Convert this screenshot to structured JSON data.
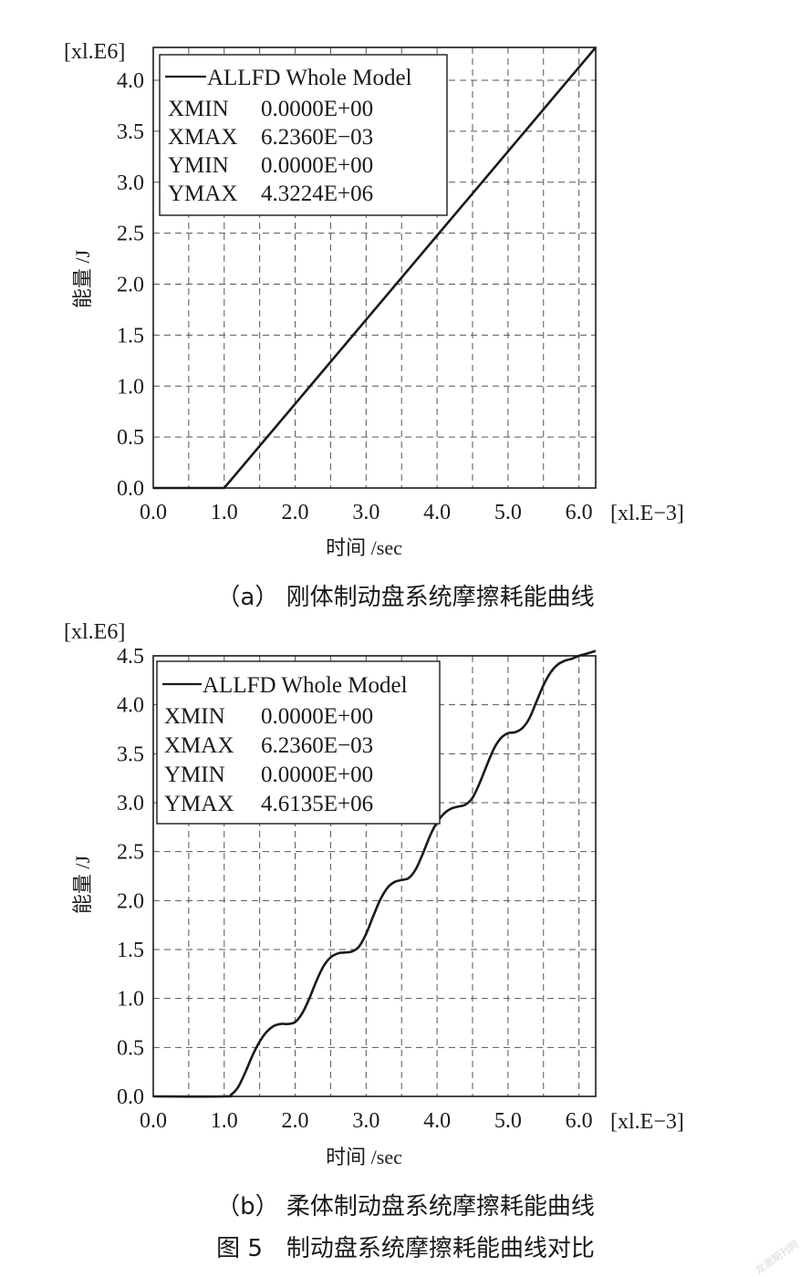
{
  "chart_data": [
    {
      "type": "line",
      "panel": "a",
      "caption": "（a） 刚体制动盘系统摩擦耗能曲线",
      "xlabel": "时间 /sec",
      "ylabel": "能量 /J",
      "x_multiplier": "[xl.E−3]",
      "y_multiplier": "[xl.E6]",
      "xlim": [
        0.0,
        6.236
      ],
      "ylim": [
        0.0,
        4.3224
      ],
      "xticks": [
        0.0,
        1.0,
        2.0,
        3.0,
        4.0,
        5.0,
        6.0
      ],
      "xtick_labels": [
        "0.0",
        "1.0",
        "2.0",
        "3.0",
        "4.0",
        "5.0",
        "6.0"
      ],
      "yticks": [
        0.0,
        0.5,
        1.0,
        1.5,
        2.0,
        2.5,
        3.0,
        3.5,
        4.0
      ],
      "ytick_labels": [
        "0.0",
        "0.5",
        "1.0",
        "1.5",
        "2.0",
        "2.5",
        "3.0",
        "3.5",
        "4.0"
      ],
      "grid_x": [
        0.5,
        1.0,
        1.5,
        2.0,
        2.5,
        3.0,
        3.5,
        4.0,
        4.5,
        5.0,
        5.5,
        6.0
      ],
      "grid_y": [
        0.5,
        1.0,
        1.5,
        2.0,
        2.5,
        3.0,
        3.5,
        4.0
      ],
      "grid": "dashed",
      "legend_position": "top-left",
      "legend": {
        "series": "ALLFD Whole Model",
        "rows": [
          {
            "key": "XMIN",
            "value": "0.0000E+00"
          },
          {
            "key": "XMAX",
            "value": "6.2360E−03"
          },
          {
            "key": "YMIN",
            "value": "0.0000E+00"
          },
          {
            "key": "YMAX",
            "value": "4.3224E+06"
          }
        ]
      },
      "series": [
        {
          "name": "ALLFD Whole Model",
          "color": "#1a1a1a",
          "x": [
            0.0,
            1.0,
            6.236
          ],
          "y": [
            0.0,
            0.0,
            4.3224
          ]
        }
      ]
    },
    {
      "type": "line",
      "panel": "b",
      "caption": "（b） 柔体制动盘系统摩擦耗能曲线",
      "xlabel": "时间 /sec",
      "ylabel": "能量 /J",
      "x_multiplier": "[xl.E−3]",
      "y_multiplier": "[xl.E6]",
      "xlim": [
        0.0,
        6.236
      ],
      "ylim": [
        0.0,
        4.5
      ],
      "xticks": [
        0.0,
        1.0,
        2.0,
        3.0,
        4.0,
        5.0,
        6.0
      ],
      "xtick_labels": [
        "0.0",
        "1.0",
        "2.0",
        "3.0",
        "4.0",
        "5.0",
        "6.0"
      ],
      "yticks": [
        0.0,
        0.5,
        1.0,
        1.5,
        2.0,
        2.5,
        3.0,
        3.5,
        4.0,
        4.5
      ],
      "ytick_labels": [
        "0.0",
        "0.5",
        "1.0",
        "1.5",
        "2.0",
        "2.5",
        "3.0",
        "3.5",
        "4.0",
        "4.5"
      ],
      "grid_x": [
        0.5,
        1.0,
        1.5,
        2.0,
        2.5,
        3.0,
        3.5,
        4.0,
        4.5,
        5.0,
        5.5,
        6.0
      ],
      "grid_y": [
        0.5,
        1.0,
        1.5,
        2.0,
        2.5,
        3.0,
        3.5,
        4.0
      ],
      "grid": "dashed",
      "legend_position": "top-left",
      "legend": {
        "series": "ALLFD Whole Model",
        "rows": [
          {
            "key": "XMIN",
            "value": "0.0000E+00"
          },
          {
            "key": "XMAX",
            "value": "6.2360E−03"
          },
          {
            "key": "YMIN",
            "value": "0.0000E+00"
          },
          {
            "key": "YMAX",
            "value": "4.6135E+06"
          }
        ]
      },
      "series": [
        {
          "name": "ALLFD Whole Model",
          "color": "#1a1a1a",
          "x": [
            0.0,
            1.0,
            1.1,
            1.2,
            1.3,
            1.4,
            1.5,
            1.6,
            1.7,
            1.8,
            1.9,
            2.0,
            2.1,
            2.2,
            2.3,
            2.4,
            2.5,
            2.6,
            2.7,
            2.8,
            2.9,
            3.0,
            3.1,
            3.2,
            3.3,
            3.4,
            3.5,
            3.6,
            3.7,
            3.8,
            3.9,
            4.0,
            4.1,
            4.2,
            4.3,
            4.4,
            4.5,
            4.6,
            4.7,
            4.8,
            4.9,
            5.0,
            5.1,
            5.2,
            5.3,
            5.4,
            5.5,
            5.6,
            5.7,
            5.8,
            5.9,
            6.0,
            6.1,
            6.236
          ],
          "y": [
            0.0,
            0.0,
            0.02,
            0.1,
            0.25,
            0.42,
            0.56,
            0.66,
            0.72,
            0.74,
            0.74,
            0.76,
            0.85,
            1.0,
            1.18,
            1.33,
            1.42,
            1.46,
            1.47,
            1.48,
            1.53,
            1.66,
            1.84,
            2.01,
            2.13,
            2.19,
            2.21,
            2.23,
            2.32,
            2.48,
            2.66,
            2.8,
            2.89,
            2.94,
            2.96,
            2.98,
            3.05,
            3.2,
            3.38,
            3.55,
            3.66,
            3.71,
            3.72,
            3.76,
            3.86,
            4.03,
            4.2,
            4.33,
            4.41,
            4.45,
            4.47,
            4.5,
            4.52,
            4.55
          ]
        }
      ]
    }
  ],
  "figure_caption": "图 5　制动盘系统摩擦耗能曲线对比",
  "watermark": "龙源期刊网"
}
